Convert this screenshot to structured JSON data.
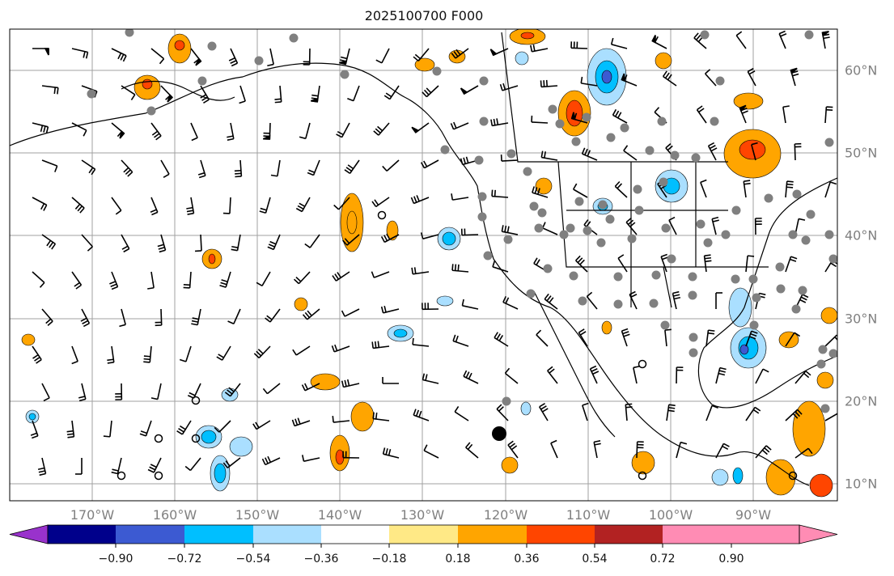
{
  "map": {
    "title": "2025100700 F000",
    "lon_labels": [
      "170°W",
      "160°W",
      "150°W",
      "140°W",
      "130°W",
      "120°W",
      "110°W",
      "100°W",
      "90°W"
    ],
    "lat_labels": [
      "60°N",
      "50°N",
      "40°N",
      "30°N",
      "20°N",
      "10°N"
    ],
    "gridline_color": "#a0a0a0",
    "coastline_color": "#000000"
  },
  "colorbar": {
    "tick_labels": [
      "−0.90",
      "−0.72",
      "−0.54",
      "−0.36",
      "−0.18",
      "0.18",
      "0.36",
      "0.54",
      "0.72",
      "0.90"
    ],
    "bins": [
      {
        "color": "#9932cc"
      },
      {
        "color": "#00008b"
      },
      {
        "color": "#3c5ad2"
      },
      {
        "color": "#00bfff"
      },
      {
        "color": "#aadfff"
      },
      {
        "color": "#ffffff"
      },
      {
        "color": "#ffe986"
      },
      {
        "color": "#ffa500"
      },
      {
        "color": "#ff4500"
      },
      {
        "color": "#b22222"
      },
      {
        "color": "#ff8cb4"
      }
    ]
  },
  "legend_colors": {
    "station_dot": "#808080",
    "station_dot_black": "#000000",
    "barb": "#000000"
  }
}
